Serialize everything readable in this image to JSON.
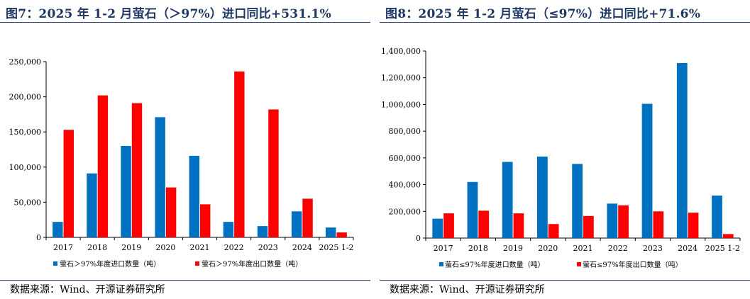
{
  "source_text": "数据来源：Wind、开源证券研究所",
  "colors": {
    "import": "#0070c0",
    "export": "#ff0000",
    "title": "#1f3864"
  },
  "chart_data": [
    {
      "type": "bar",
      "title": "图7：2025 年 1-2 月萤石（＞97%）进口同比+531.1%",
      "categories": [
        "2017",
        "2018",
        "2019",
        "2020",
        "2021",
        "2022",
        "2023",
        "2024",
        "2025 1-2"
      ],
      "ylim": [
        0,
        250000
      ],
      "yticks": [
        "0",
        "50,000",
        "100,000",
        "150,000",
        "200,000",
        "250,000"
      ],
      "ytick_values": [
        0,
        50000,
        100000,
        150000,
        200000,
        250000
      ],
      "grid": false,
      "legend_position": "bottom",
      "series": [
        {
          "name": "萤石＞97%年度进口数量（吨）",
          "color": "#0070c0",
          "values": [
            22000,
            91000,
            130000,
            171000,
            116000,
            22000,
            16000,
            37000,
            14000
          ]
        },
        {
          "name": "萤石＞97%年度出口数量（吨）",
          "color": "#ff0000",
          "values": [
            153000,
            202000,
            191000,
            71000,
            47000,
            236000,
            182000,
            55000,
            7000
          ]
        }
      ]
    },
    {
      "type": "bar",
      "title": "图8：2025 年 1-2 月萤石（≤97%）进口同比+71.6%",
      "categories": [
        "2017",
        "2018",
        "2019",
        "2020",
        "2021",
        "2022",
        "2023",
        "2024",
        "2025 1-2"
      ],
      "ylim": [
        0,
        1400000
      ],
      "yticks": [
        "0",
        "200,000",
        "400,000",
        "600,000",
        "800,000",
        "1,000,000",
        "1,200,000",
        "1,400,000"
      ],
      "ytick_values": [
        0,
        200000,
        400000,
        600000,
        800000,
        1000000,
        1200000,
        1400000
      ],
      "grid": false,
      "legend_position": "bottom",
      "series": [
        {
          "name": "萤石≤97%年度进口数量（吨）",
          "color": "#0070c0",
          "values": [
            145000,
            420000,
            570000,
            610000,
            555000,
            258000,
            1005000,
            1310000,
            318000
          ]
        },
        {
          "name": "萤石≤97%年度出口数量（吨）",
          "color": "#ff0000",
          "values": [
            185000,
            205000,
            185000,
            105000,
            165000,
            245000,
            200000,
            190000,
            30000
          ]
        }
      ]
    }
  ]
}
